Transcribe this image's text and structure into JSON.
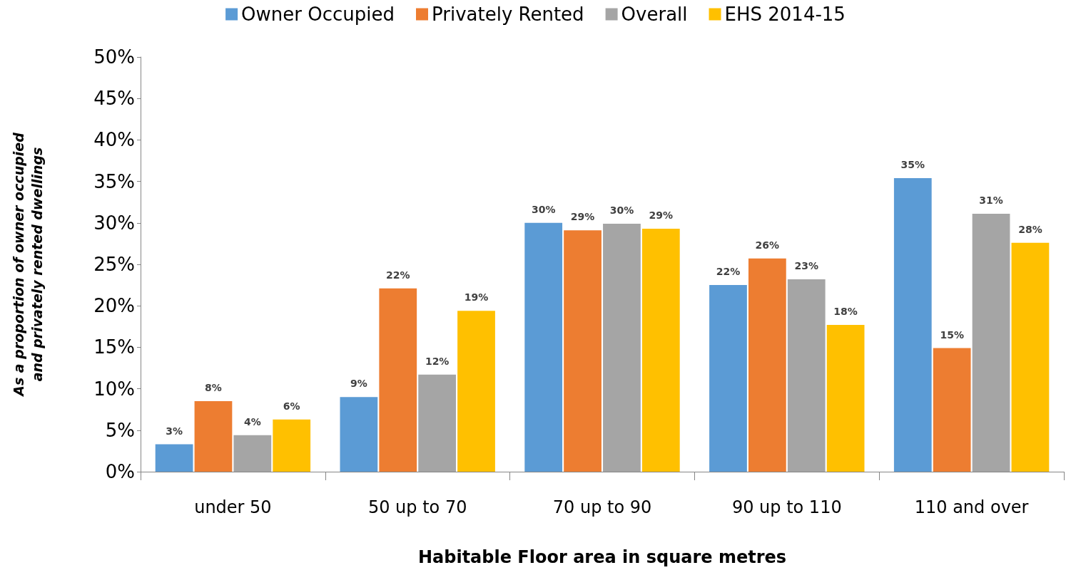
{
  "chart_data": {
    "type": "bar",
    "xlabel": "Habitable Floor area in square metres",
    "ylabel": "As a proportion of owner occupied and privately rented dwellings",
    "categories": [
      "under 50",
      "50 up to 70",
      "70 up to 90",
      "90 up to 110",
      "110 and over"
    ],
    "series": [
      {
        "name": "Owner Occupied",
        "color": "#5b9bd5",
        "values": [
          3.3,
          9.0,
          30.0,
          22.5,
          35.4
        ],
        "value_labels": [
          "3%",
          "9%",
          "30%",
          "22%",
          "35%"
        ]
      },
      {
        "name": "Privately Rented",
        "color": "#ed7d31",
        "values": [
          8.5,
          22.1,
          29.1,
          25.7,
          14.9
        ],
        "value_labels": [
          "8%",
          "22%",
          "29%",
          "26%",
          "15%"
        ]
      },
      {
        "name": "Overall",
        "color": "#a5a5a5",
        "values": [
          4.4,
          11.7,
          29.9,
          23.2,
          31.1
        ],
        "value_labels": [
          "4%",
          "12%",
          "30%",
          "23%",
          "31%"
        ]
      },
      {
        "name": "EHS 2014-15",
        "color": "#ffc000",
        "values": [
          6.3,
          19.4,
          29.3,
          17.7,
          27.6
        ],
        "value_labels": [
          "6%",
          "19%",
          "29%",
          "18%",
          "28%"
        ]
      }
    ],
    "ylim": [
      0,
      50
    ],
    "yticks": [
      {
        "value": 0,
        "label": "0%"
      },
      {
        "value": 5,
        "label": "5%"
      },
      {
        "value": 10,
        "label": "10%"
      },
      {
        "value": 15,
        "label": "15%"
      },
      {
        "value": 20,
        "label": "20%"
      },
      {
        "value": 25,
        "label": "25%"
      },
      {
        "value": 30,
        "label": "30%"
      },
      {
        "value": 35,
        "label": "35%"
      },
      {
        "value": 40,
        "label": "40%"
      },
      {
        "value": 45,
        "label": "45%"
      },
      {
        "value": 50,
        "label": "50%"
      }
    ],
    "grid": false,
    "legend": "top"
  }
}
